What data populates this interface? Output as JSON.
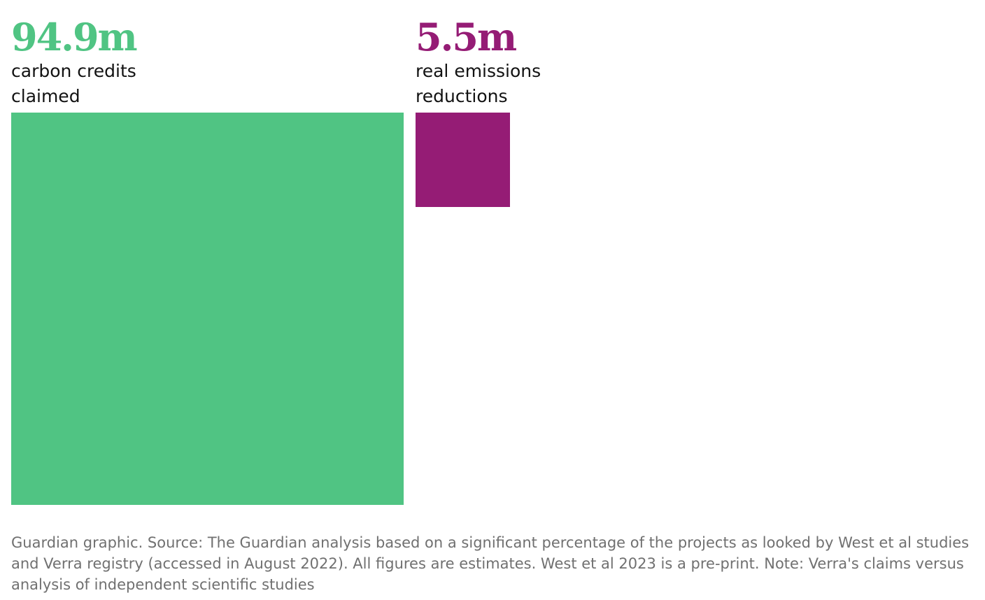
{
  "chart_data": {
    "type": "bar",
    "subtype": "proportional-squares",
    "unit": "m",
    "series": [
      {
        "value_label": "94.9m",
        "label": "carbon credits claimed",
        "value": 94.9,
        "color": "#50c483"
      },
      {
        "value_label": "5.5m",
        "label": "real emissions reductions",
        "value": 5.5,
        "color": "#951c75"
      }
    ]
  },
  "footer": {
    "source": "Guardian graphic. Source: The Guardian analysis based on a significant percentage of the projects as looked by West et al studies and Verra registry (accessed in August 2022). All figures are estimates. West et al 2023 is a pre-print. Note: Verra's claims versus analysis of independent scientific studies"
  }
}
